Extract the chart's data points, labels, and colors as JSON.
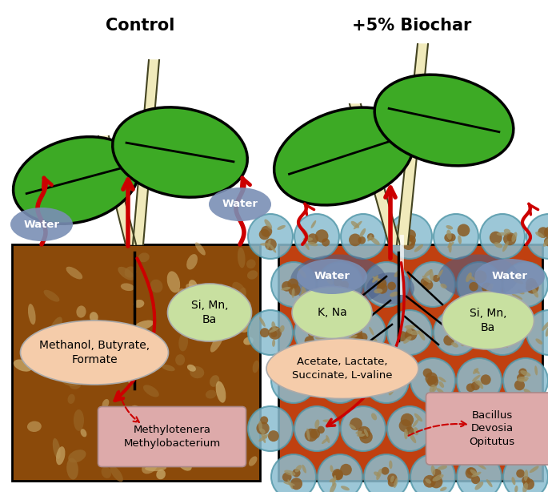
{
  "title_left": "Control",
  "title_right": "+5% Biochar",
  "title_fontsize": 15,
  "soil_left_color": "#8B4A0A",
  "soil_right_color": "#C04010",
  "background_color": "#FFFFFF",
  "leaf_green": "#3DAA25",
  "stem_color": "#F0EABB",
  "stem_outline": "#444422",
  "arrow_red": "#CC0000",
  "water_bubble_color": "#7A8FB5",
  "label_methanol_text": "Methanol, Butyrate,\nFormate",
  "label_methanol_color": "#F5CCAA",
  "label_si_left_text": "Si, Mn,\nBa",
  "label_si_color": "#C8E0A0",
  "label_methylo_text": "Methylotenera\nMethylobacterium",
  "label_methylo_color": "#DDAAAA",
  "label_acetate_text": "Acetate, Lactate,\nSuccinate, L-valine",
  "label_acetate_color": "#F5CCAA",
  "label_kna_text": "K, Na",
  "label_kna_color": "#C8E0A0",
  "label_si_right_text": "Si, Mn,\nBa",
  "label_si_right_color": "#C8E0A0",
  "label_bacillus_text": "Bacillus\nDevosia\nOpitutus",
  "label_bacillus_color": "#DDAAAA",
  "microbe_fill": "#8BBDD0",
  "microbe_edge": "#5599AA",
  "microbe_inner": "#8B5A20",
  "microbe_rod": "#A09060",
  "soil_particle_color": "#C8A868",
  "soil_particle_dark": "#9B6A2A"
}
